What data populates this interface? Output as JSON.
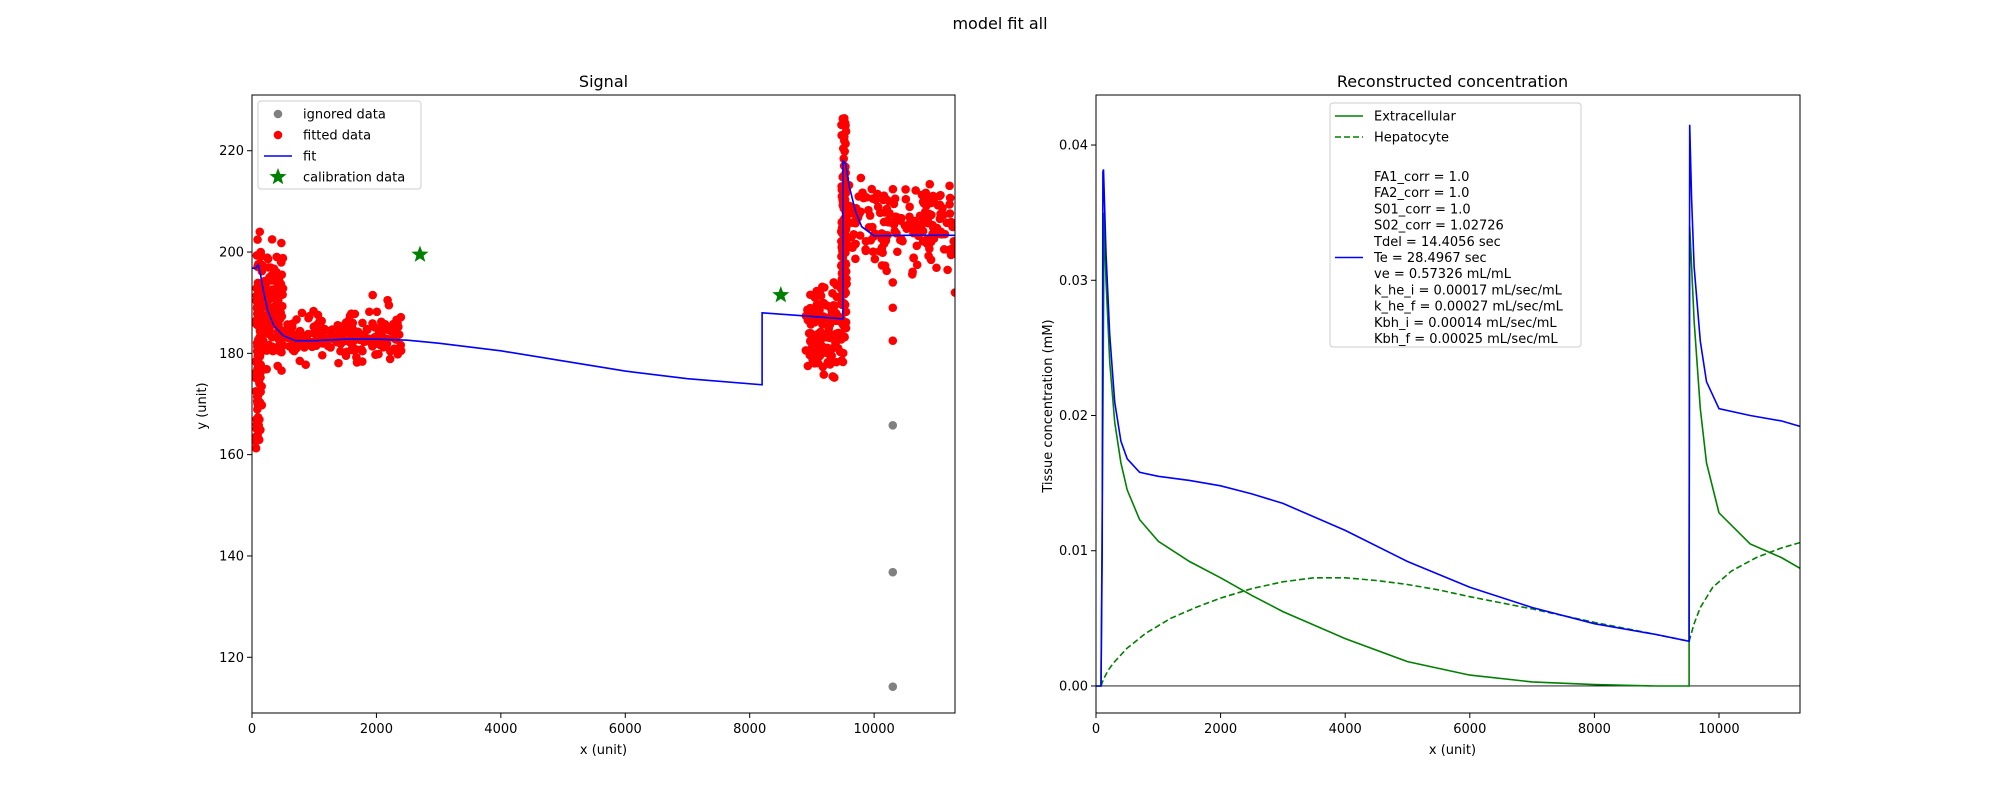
{
  "figure": {
    "suptitle": "model fit all"
  },
  "chart_data": [
    {
      "type": "scatter",
      "title": "Signal",
      "xlabel": "x (unit)",
      "ylabel": "y (unit)",
      "xlim": [
        0,
        11300
      ],
      "ylim": [
        109,
        231
      ],
      "xticks": [
        "0",
        "2000",
        "4000",
        "6000",
        "8000",
        "10000"
      ],
      "xtick_values": [
        0,
        2000,
        4000,
        6000,
        8000,
        10000
      ],
      "yticks": [
        "120",
        "140",
        "160",
        "180",
        "200",
        "220"
      ],
      "ytick_values": [
        120,
        140,
        160,
        180,
        200,
        220
      ],
      "legend_position": "top-left",
      "colors": {
        "ignored": "#808080",
        "fitted": "#ff0000",
        "fit": "#0000ff",
        "calibration": "#008000"
      },
      "series": [
        {
          "name": "ignored data",
          "kind": "scatter",
          "x": [
            10300,
            10300,
            10300
          ],
          "y": [
            165.8,
            136.8,
            114.2
          ]
        },
        {
          "name": "fitted data",
          "kind": "scatter-cloud",
          "clusters": [
            {
              "x": [
                60,
                160
              ],
              "y": [
                163,
                204
              ]
            },
            {
              "x": [
                160,
                500
              ],
              "y": [
                179,
                200
              ]
            },
            {
              "x": [
                500,
                2450
              ],
              "y": [
                178.5,
                188
              ]
            },
            {
              "x": [
                8900,
                9500
              ],
              "y": [
                176,
                193
              ]
            },
            {
              "x": [
                9470,
                9560
              ],
              "y": [
                183,
                225
              ]
            },
            {
              "x": [
                9550,
                11300
              ],
              "y": [
                197,
                213
              ]
            }
          ],
          "x": [
            60,
            75,
            90,
            100,
            110,
            125,
            140,
            1480,
            1620,
            1940,
            2180,
            2200,
            9050,
            9200,
            9350,
            9500,
            9520,
            9540,
            10300,
            10300,
            10300,
            11300
          ],
          "y": [
            163.5,
            166,
            170,
            177,
            193,
            204,
            200,
            184,
            186,
            191.5,
            190.5,
            189.5,
            191,
            193,
            194,
            210,
            222,
            225,
            194,
            189,
            182.5,
            192
          ]
        },
        {
          "name": "fit",
          "kind": "line",
          "x": [
            0,
            60,
            100,
            130,
            180,
            250,
            350,
            500,
            700,
            1000,
            1500,
            2000,
            2500,
            3000,
            4000,
            5000,
            6000,
            7000,
            8200,
            8200,
            9000,
            9500,
            9500,
            9540,
            9600,
            9700,
            9800,
            10000,
            10500,
            11300
          ],
          "y": [
            196.8,
            196.8,
            197.5,
            196.0,
            192.5,
            188.5,
            185.5,
            183.5,
            182.5,
            182.5,
            182.8,
            182.8,
            182.6,
            182.0,
            180.5,
            178.5,
            176.5,
            175.0,
            173.8,
            188.0,
            187.3,
            186.8,
            218.0,
            217.5,
            213.0,
            208.0,
            205.0,
            203.2,
            203.3,
            203.3
          ]
        },
        {
          "name": "calibration data",
          "kind": "star",
          "x": [
            2700,
            8500
          ],
          "y": [
            199.5,
            191.5
          ]
        }
      ]
    },
    {
      "type": "line",
      "title": "Reconstructed concentration",
      "xlabel": "x (unit)",
      "ylabel": "Tissue concentration (mM)",
      "xlim": [
        0,
        11300
      ],
      "ylim": [
        -0.002,
        0.0437
      ],
      "xticks": [
        "0",
        "2000",
        "4000",
        "6000",
        "8000",
        "10000"
      ],
      "xtick_values": [
        0,
        2000,
        4000,
        6000,
        8000,
        10000
      ],
      "yticks": [
        "0.00",
        "0.01",
        "0.02",
        "0.03",
        "0.04"
      ],
      "ytick_values": [
        0,
        0.01,
        0.02,
        0.03,
        0.04
      ],
      "legend_position": "top-center",
      "colors": {
        "extracellular": "#008000",
        "hepatocyte": "#008000",
        "total": "#0000ff"
      },
      "series": [
        {
          "name": "Extracellular",
          "style": "solid",
          "x": [
            0,
            80,
            110,
            130,
            160,
            220,
            300,
            400,
            500,
            700,
            1000,
            1500,
            2000,
            2500,
            3000,
            4000,
            5000,
            6000,
            7000,
            8000,
            9000,
            9520,
            9520,
            9530,
            9560,
            9600,
            9700,
            9800,
            10000,
            10500,
            11000,
            11300
          ],
          "y": [
            0,
            0,
            0.02,
            0.035,
            0.03,
            0.024,
            0.0195,
            0.0165,
            0.0145,
            0.0123,
            0.0107,
            0.0092,
            0.008,
            0.0067,
            0.0055,
            0.0035,
            0.0018,
            0.0008,
            0.0003,
            0.0001,
            0,
            0,
            0.005,
            0.034,
            0.031,
            0.027,
            0.0205,
            0.0165,
            0.0128,
            0.0105,
            0.0095,
            0.0087
          ]
        },
        {
          "name": "Hepatocyte",
          "style": "dashed",
          "x": [
            80,
            120,
            200,
            300,
            500,
            800,
            1200,
            1600,
            2000,
            2500,
            3000,
            3500,
            4000,
            4500,
            5000,
            5500,
            6000,
            7000,
            8000,
            9000,
            9520,
            9600,
            9700,
            9900,
            10200,
            10600,
            11000,
            11300
          ],
          "y": [
            0,
            0.0005,
            0.0012,
            0.0018,
            0.0028,
            0.0039,
            0.005,
            0.0058,
            0.0065,
            0.0072,
            0.0077,
            0.008,
            0.008,
            0.0078,
            0.0075,
            0.0071,
            0.0066,
            0.0057,
            0.0047,
            0.0038,
            0.0033,
            0.0046,
            0.0058,
            0.0073,
            0.0085,
            0.0095,
            0.0102,
            0.0106
          ]
        },
        {
          "name": "",
          "style": "solid",
          "legend_label": "FA1_corr = 1.0\nFA2_corr = 1.0\nS01_corr = 1.0\nS02_corr = 1.02726\nTdel = 14.4056 sec\nTe = 28.4967 sec\nve = 0.57326 mL/mL\nk_he_i = 0.00017 mL/sec/mL\nk_he_f = 0.00027 mL/sec/mL\nKbh_i = 0.00014 mL/sec/mL\nKbh_f = 0.00025 mL/sec/mL",
          "x": [
            0,
            80,
            100,
            110,
            120,
            160,
            220,
            300,
            400,
            500,
            700,
            1000,
            1500,
            2000,
            2500,
            3000,
            4000,
            5000,
            6000,
            7000,
            8000,
            9000,
            9520,
            9520,
            9530,
            9560,
            9600,
            9700,
            9800,
            10000,
            10500,
            11000,
            11300
          ],
          "y": [
            0,
            0,
            0.01,
            0.038,
            0.0382,
            0.032,
            0.026,
            0.021,
            0.0181,
            0.0168,
            0.0158,
            0.0155,
            0.0152,
            0.0148,
            0.0142,
            0.0135,
            0.0115,
            0.0092,
            0.0073,
            0.0058,
            0.0046,
            0.0038,
            0.0033,
            0.0075,
            0.0415,
            0.036,
            0.031,
            0.0255,
            0.0225,
            0.0205,
            0.02,
            0.0196,
            0.0192
          ]
        }
      ]
    }
  ]
}
